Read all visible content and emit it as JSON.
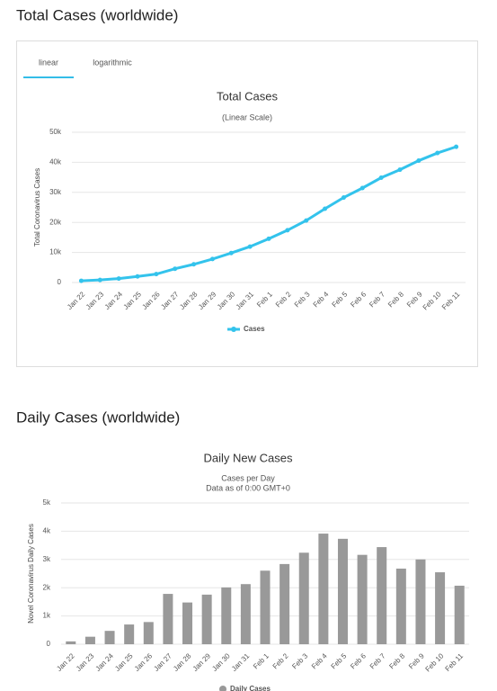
{
  "sections": [
    {
      "heading": "Total Cases (worldwide)",
      "tabs": [
        "linear",
        "logarithmic"
      ]
    },
    {
      "heading": "Daily Cases (worldwide)"
    }
  ],
  "chart_data": [
    {
      "type": "line",
      "title": "Total Cases",
      "subtitle": [
        "(Linear Scale)"
      ],
      "y_label": "Total Coronavirus Cases",
      "categories": [
        "Jan 22",
        "Jan 23",
        "Jan 24",
        "Jan 25",
        "Jan 26",
        "Jan 27",
        "Jan 28",
        "Jan 29",
        "Jan 30",
        "Jan 31",
        "Feb 1",
        "Feb 2",
        "Feb 3",
        "Feb 4",
        "Feb 5",
        "Feb 6",
        "Feb 7",
        "Feb 8",
        "Feb 9",
        "Feb 10",
        "Feb 11"
      ],
      "series": [
        {
          "name": "Cases",
          "color": "#33c3ec",
          "values": [
            580,
            845,
            1317,
            2015,
            2800,
            4581,
            6058,
            7813,
            9823,
            11950,
            14553,
            17391,
            20630,
            24545,
            28276,
            31439,
            34876,
            37552,
            40553,
            43099,
            45170
          ]
        }
      ],
      "ylim": [
        0,
        50000
      ],
      "yticks": [
        0,
        {
          "value": 10000,
          "label": "10k"
        },
        {
          "value": 20000,
          "label": "20k"
        },
        {
          "value": 30000,
          "label": "30k"
        },
        {
          "value": 40000,
          "label": "40k"
        },
        {
          "value": 50000,
          "label": "50k"
        }
      ],
      "grid": true
    },
    {
      "type": "bar",
      "title": "Daily New Cases",
      "subtitle": [
        "Cases per Day",
        "Data as of 0:00 GMT+0"
      ],
      "y_label": "Novel Coronavirus Daily Cases",
      "categories": [
        "Jan 22",
        "Jan 23",
        "Jan 24",
        "Jan 25",
        "Jan 26",
        "Jan 27",
        "Jan 28",
        "Jan 29",
        "Jan 30",
        "Jan 31",
        "Feb 1",
        "Feb 2",
        "Feb 3",
        "Feb 4",
        "Feb 5",
        "Feb 6",
        "Feb 7",
        "Feb 8",
        "Feb 9",
        "Feb 10",
        "Feb 11"
      ],
      "series": [
        {
          "name": "Daily Cases",
          "color": "#999999",
          "values": [
            100,
            265,
            472,
            698,
            785,
            1781,
            1477,
            1755,
            2010,
            2127,
            2603,
            2838,
            3239,
            3915,
            3731,
            3163,
            3437,
            2676,
            3001,
            2546,
            2071
          ]
        }
      ],
      "ylim": [
        0,
        5000
      ],
      "yticks": [
        0,
        {
          "value": 1000,
          "label": "1k"
        },
        {
          "value": 2000,
          "label": "2k"
        },
        {
          "value": 3000,
          "label": "3k"
        },
        {
          "value": 4000,
          "label": "4k"
        },
        {
          "value": 5000,
          "label": "5k"
        }
      ],
      "grid": true
    }
  ]
}
